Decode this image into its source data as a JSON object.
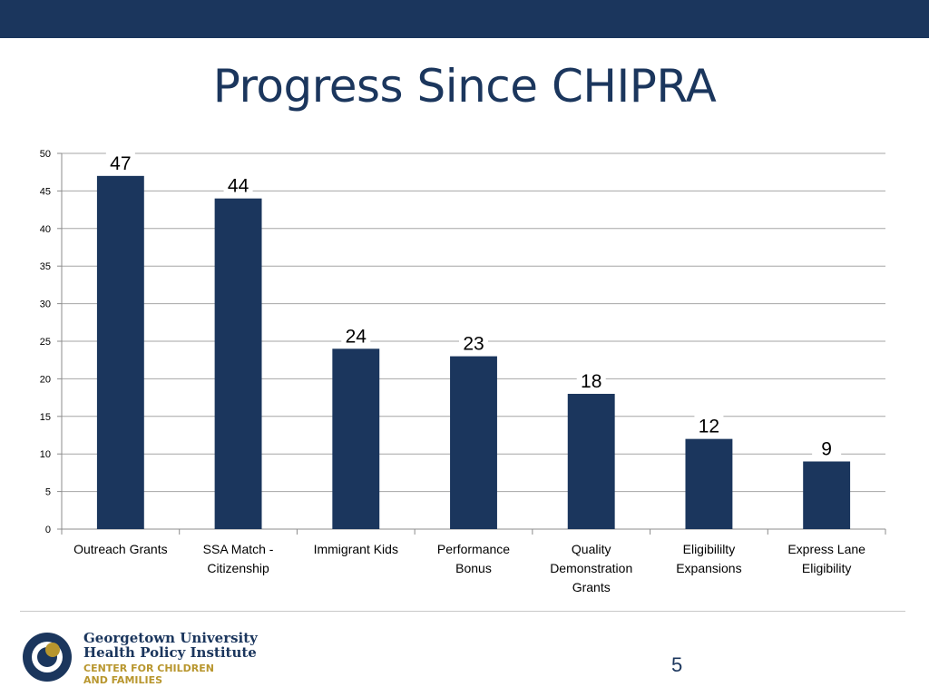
{
  "slide": {
    "title": "Progress Since CHIPRA",
    "page_number": "5"
  },
  "logo": {
    "line1": "Georgetown University",
    "line2": "Health Policy Institute",
    "line3": "CENTER FOR CHILDREN",
    "line4": "AND FAMILIES"
  },
  "colors": {
    "bar": "#1b365d",
    "top_bar": "#1b365d",
    "logo_gold": "#b8962e"
  },
  "chart_data": {
    "type": "bar",
    "categories": [
      [
        "Outreach Grants"
      ],
      [
        "SSA Match -",
        "Citizenship"
      ],
      [
        "Immigrant  Kids"
      ],
      [
        "Performance",
        "Bonus"
      ],
      [
        "Quality",
        "Demonstration",
        "Grants"
      ],
      [
        "Eligibililty",
        "Expansions"
      ],
      [
        "Express Lane",
        "Eligibility"
      ]
    ],
    "values": [
      47,
      44,
      24,
      23,
      18,
      12,
      9
    ],
    "ylim": [
      0,
      50
    ],
    "yticks": [
      0,
      5,
      10,
      15,
      20,
      25,
      30,
      35,
      40,
      45,
      50
    ],
    "grid": true,
    "data_labels": true
  }
}
